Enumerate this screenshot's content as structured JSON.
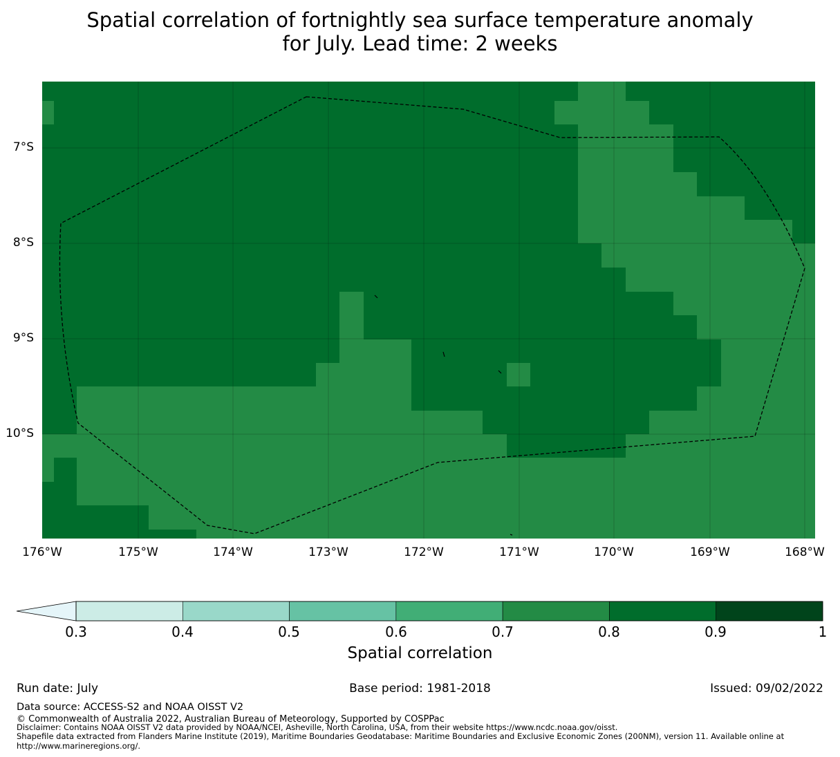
{
  "title": {
    "line1": "Spatial correlation of fortnightly sea surface temperature anomaly",
    "line2": "for July. Lead time: 2 weeks"
  },
  "map": {
    "lat_labels": [
      "7°S",
      "8°S",
      "9°S",
      "10°S"
    ],
    "lon_labels": [
      "176°W",
      "175°W",
      "174°W",
      "173°W",
      "172°W",
      "171°W",
      "170°W",
      "169°W",
      "168°W"
    ],
    "lon_range": [
      -176,
      -168
    ],
    "lat_range": [
      -11.1,
      -6.3
    ],
    "level_colors": {
      "0.7-0.8": "#238b45",
      "0.8-0.9": "#006d2c"
    }
  },
  "colorbar": {
    "ticks": [
      "0.3",
      "0.4",
      "0.5",
      "0.6",
      "0.7",
      "0.8",
      "0.9",
      "1"
    ],
    "colors": [
      "#e5f5f9",
      "#ccece6",
      "#99d8c9",
      "#66c2a4",
      "#41ae76",
      "#238b45",
      "#006d2c",
      "#00441b"
    ],
    "label": "Spatial correlation"
  },
  "footer": {
    "run_date": "Run date: July",
    "base_period": "Base period: 1981-2018",
    "issued": "Issued: 09/02/2022",
    "data_source": "Data source: ACCESS-S2 and NOAA OISST V2",
    "copyright": "© Commonwealth of Australia 2022, Australian Bureau of Meteorology, Supported by COSPPac",
    "disclaimer": "Disclaimer: Contains NOAA OISST V2 data provided by NOAA/NCEI, Asheville, North Carolina, USA, from their website https://www.ncdc.noaa.gov/oisst.",
    "shapefile_1": "Shapefile data extracted from Flanders Marine Institute (2019), Maritime Boundaries Geodatabase: Maritime Boundaries and Exclusive Economic Zones (200NM), version 11. Available online at",
    "shapefile_2": "http://www.marineregions.org/."
  }
}
